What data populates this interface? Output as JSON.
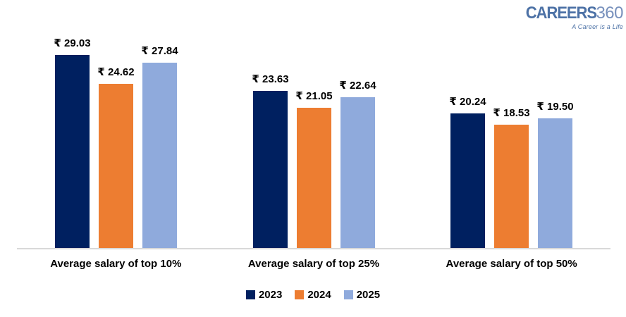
{
  "logo": {
    "brand_bold": "CAREERS",
    "brand_light": "360",
    "tagline": "A Career is a Life",
    "color": "#4D72A6",
    "light_color": "#7790BC"
  },
  "chart_data": {
    "type": "bar",
    "title": "",
    "xlabel": "",
    "ylabel": "",
    "value_prefix": "₹ ",
    "value_decimals": 2,
    "categories": [
      "Average salary of top 10%",
      "Average salary of top 25%",
      "Average salary of top 50%"
    ],
    "series": [
      {
        "name": "2023",
        "color": "#002060",
        "values": [
          29.03,
          23.63,
          20.24
        ]
      },
      {
        "name": "2024",
        "color": "#ED7D31",
        "values": [
          24.62,
          21.05,
          18.53
        ]
      },
      {
        "name": "2025",
        "color": "#8FAADC",
        "values": [
          27.84,
          22.64,
          19.5
        ]
      }
    ],
    "data_labels": [
      [
        "₹ 29.03",
        "₹ 23.63",
        "₹ 20.24"
      ],
      [
        "₹ 24.62",
        "₹ 21.05",
        "₹ 18.53"
      ],
      [
        "₹ 27.84",
        "₹ 22.64",
        "₹ 19.50"
      ]
    ],
    "ylim": [
      0,
      35
    ],
    "grid": false,
    "legend_position": "bottom",
    "axis_line_color": "#D9D9D9"
  }
}
